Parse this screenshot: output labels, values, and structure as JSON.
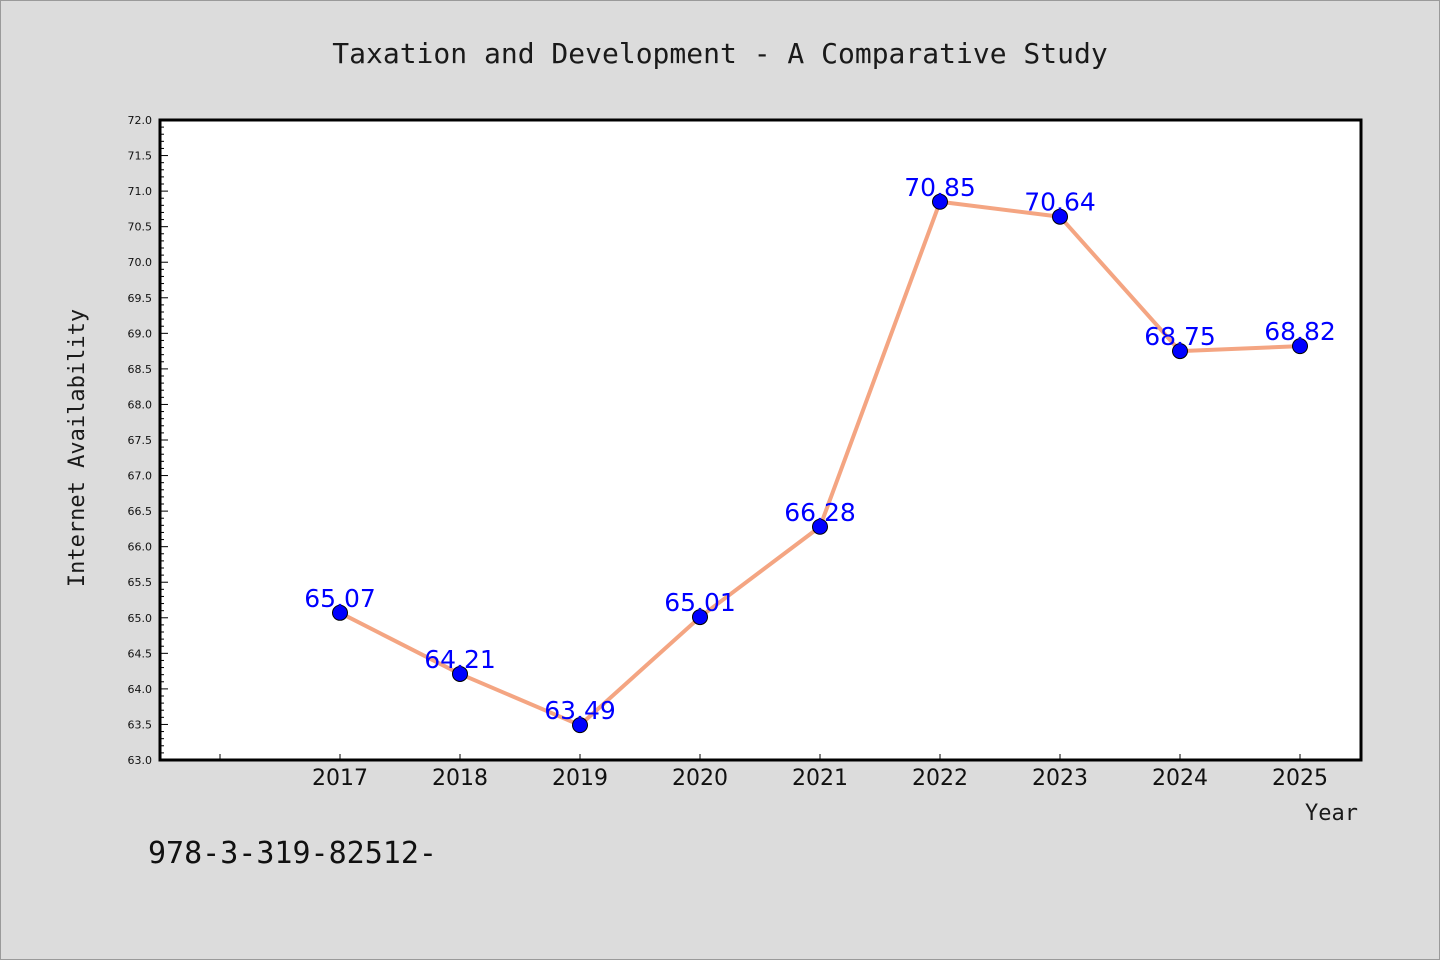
{
  "chart_data": {
    "type": "line",
    "title": "Taxation and Development - A Comparative Study",
    "xlabel": "Year",
    "ylabel": "Internet Availability",
    "x": [
      "2017",
      "2018",
      "2019",
      "2020",
      "2021",
      "2022",
      "2023",
      "2024",
      "2025"
    ],
    "series": [
      {
        "values": [
          65.07,
          64.21,
          63.49,
          65.01,
          66.28,
          70.85,
          70.64,
          68.75,
          68.82
        ],
        "labels": [
          "65.07",
          "64.21",
          "63.49",
          "65.01",
          "66.28",
          "70.85",
          "70.64",
          "68.75",
          "68.82"
        ]
      }
    ],
    "ylim": [
      63.0,
      72.0
    ],
    "yticks": [
      "63.0",
      "63.5",
      "64.0",
      "64.5",
      "65.0",
      "65.5",
      "66.0",
      "66.5",
      "67.0",
      "67.5",
      "68.0",
      "68.5",
      "69.0",
      "69.5",
      "70.0",
      "70.5",
      "71.0",
      "71.5",
      "72.0"
    ],
    "grid": false,
    "legend": "none",
    "colors": {
      "line": "#f4a582",
      "marker": "#0000ff",
      "data_label": "#0000ff",
      "background": "#dcdcdc",
      "plot_background": "#ffffff"
    }
  },
  "footer": {
    "isbn": "978-3-319-82512-"
  }
}
